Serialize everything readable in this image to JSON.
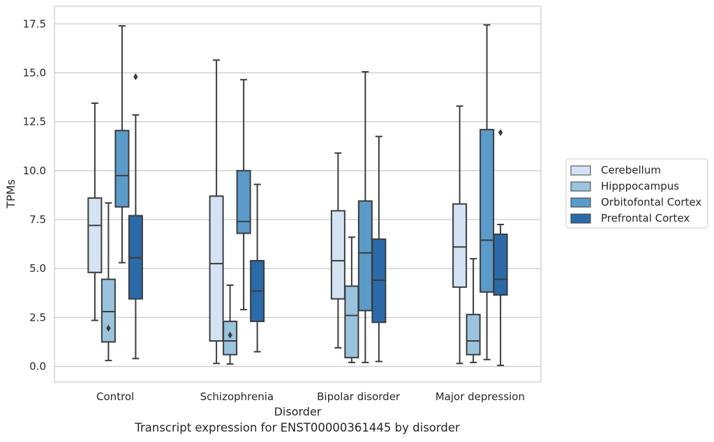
{
  "chart_data": {
    "type": "box",
    "categories": [
      "Control",
      "Schizophrenia",
      "Bipolar disorder",
      "Major depression"
    ],
    "xlabel": "Disorder",
    "ylabel": "TPMs",
    "caption": "Transcript expression for ENST00000361445 by disorder",
    "ylim": [
      -0.8,
      18.4
    ],
    "yticks": [
      0.0,
      2.5,
      5.0,
      7.5,
      10.0,
      12.5,
      15.0,
      17.5
    ],
    "ytick_labels": [
      "0.0",
      "2.5",
      "5.0",
      "7.5",
      "10.0",
      "12.5",
      "15.0",
      "17.5"
    ],
    "grid": "horizontal",
    "legend_position": "right",
    "series": [
      {
        "name": "Cerebellum",
        "color": "#d4e3f3",
        "boxes": [
          {
            "whislo": 2.35,
            "q1": 4.8,
            "med": 7.2,
            "q3": 8.6,
            "whishi": 13.45,
            "fliers": []
          },
          {
            "whislo": 0.15,
            "q1": 1.3,
            "med": 5.25,
            "q3": 8.7,
            "whishi": 15.65,
            "fliers": []
          },
          {
            "whislo": 0.95,
            "q1": 3.45,
            "med": 5.4,
            "q3": 7.95,
            "whishi": 10.9,
            "fliers": []
          },
          {
            "whislo": 0.15,
            "q1": 4.05,
            "med": 6.1,
            "q3": 8.3,
            "whishi": 13.3,
            "fliers": []
          }
        ]
      },
      {
        "name": "Hipppocampus",
        "color": "#9ac3dd",
        "boxes": [
          {
            "whislo": 0.3,
            "q1": 1.25,
            "med": 2.8,
            "q3": 4.45,
            "whishi": 8.35,
            "fliers": [
              1.95
            ]
          },
          {
            "whislo": 0.12,
            "q1": 0.6,
            "med": 1.3,
            "q3": 2.3,
            "whishi": 4.15,
            "fliers": [
              1.6
            ]
          },
          {
            "whislo": 0.2,
            "q1": 0.45,
            "med": 2.6,
            "q3": 4.1,
            "whishi": 6.6,
            "fliers": []
          },
          {
            "whislo": 0.2,
            "q1": 0.6,
            "med": 1.3,
            "q3": 2.65,
            "whishi": 5.5,
            "fliers": []
          }
        ]
      },
      {
        "name": "Orbitofontal Cortex",
        "color": "#5b9bc9",
        "boxes": [
          {
            "whislo": 5.3,
            "q1": 8.15,
            "med": 9.75,
            "q3": 12.05,
            "whishi": 17.4,
            "fliers": []
          },
          {
            "whislo": 2.9,
            "q1": 6.8,
            "med": 7.4,
            "q3": 10.0,
            "whishi": 14.65,
            "fliers": []
          },
          {
            "whislo": 0.2,
            "q1": 2.85,
            "med": 5.8,
            "q3": 8.45,
            "whishi": 15.05,
            "fliers": []
          },
          {
            "whislo": 0.35,
            "q1": 3.8,
            "med": 6.45,
            "q3": 12.1,
            "whishi": 17.45,
            "fliers": []
          }
        ]
      },
      {
        "name": "Prefrontal Cortex",
        "color": "#2a6aa9",
        "boxes": [
          {
            "whislo": 0.4,
            "q1": 3.45,
            "med": 5.55,
            "q3": 7.7,
            "whishi": 12.85,
            "fliers": [
              14.8
            ]
          },
          {
            "whislo": 0.75,
            "q1": 2.3,
            "med": 3.85,
            "q3": 5.4,
            "whishi": 9.3,
            "fliers": []
          },
          {
            "whislo": 0.25,
            "q1": 2.25,
            "med": 4.4,
            "q3": 6.5,
            "whishi": 11.75,
            "fliers": []
          },
          {
            "whislo": 0.05,
            "q1": 3.65,
            "med": 4.45,
            "q3": 6.75,
            "whishi": 7.25,
            "fliers": [
              11.95
            ]
          }
        ]
      }
    ]
  }
}
